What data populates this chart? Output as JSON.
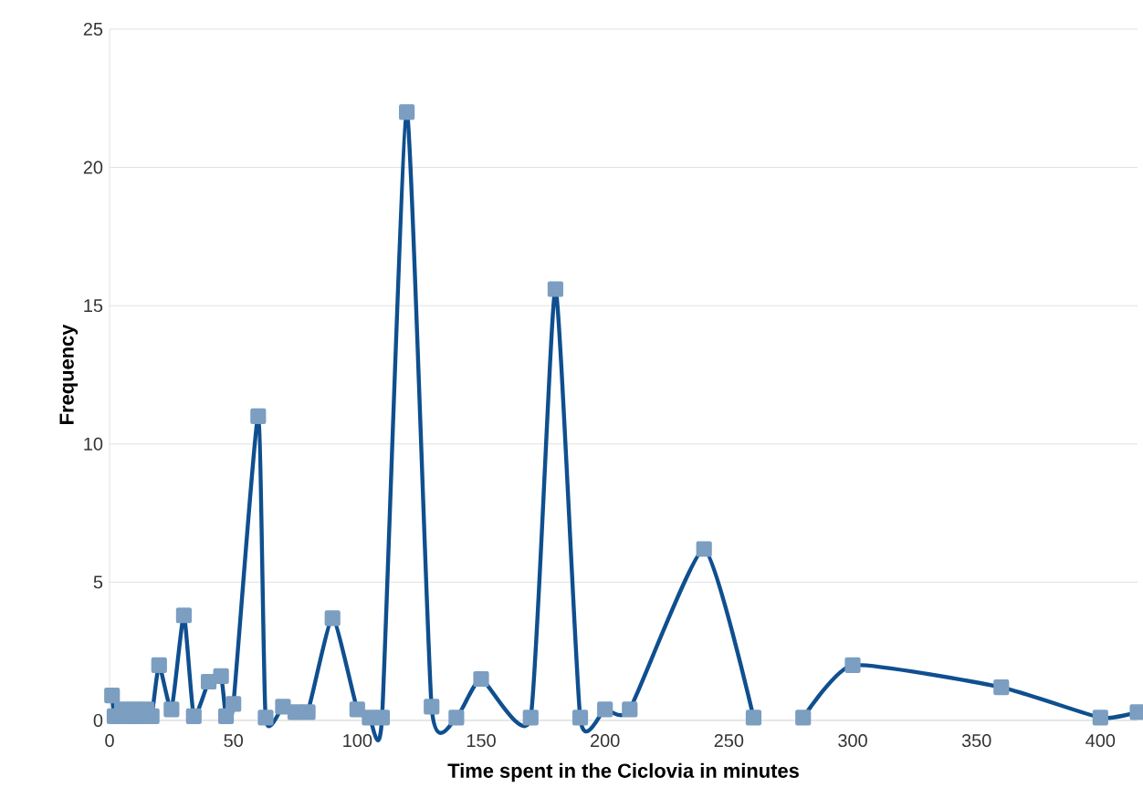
{
  "chart_data": {
    "type": "line",
    "xlabel": "Time spent in the Ciclovia in minutes",
    "ylabel": "Frequency",
    "x": [
      1,
      2,
      5,
      7,
      10,
      12,
      15,
      17,
      20,
      25,
      30,
      34,
      40,
      45,
      47,
      50,
      60,
      63,
      70,
      75,
      80,
      90,
      100,
      105,
      110,
      120,
      130,
      140,
      150,
      170,
      180,
      190,
      200,
      210,
      240,
      260,
      270,
      280,
      300,
      360,
      400,
      415
    ],
    "series": [
      {
        "color": "#0f4f8f",
        "values": [
          0.9,
          0.15,
          0.4,
          0.15,
          0.4,
          0.15,
          0.4,
          0.15,
          2.0,
          0.4,
          3.8,
          0.15,
          1.4,
          1.6,
          0.15,
          0.6,
          11.0,
          0.1,
          0.5,
          0.3,
          0.3,
          3.7,
          0.4,
          0.1,
          0.1,
          22.0,
          0.5,
          0.1,
          1.5,
          0.1,
          15.6,
          0.1,
          0.4,
          0.4,
          6.2,
          0.1,
          null,
          0.1,
          2.0,
          1.2,
          0.1,
          0.3
        ]
      }
    ],
    "xlim": [
      0,
      415
    ],
    "ylim": [
      0,
      25
    ],
    "xticks": [
      0,
      50,
      100,
      150,
      200,
      250,
      300,
      350,
      400
    ],
    "yticks": [
      0,
      5,
      10,
      15,
      20,
      25
    ],
    "grid": "y",
    "marker": "square",
    "line_style": "solid"
  }
}
